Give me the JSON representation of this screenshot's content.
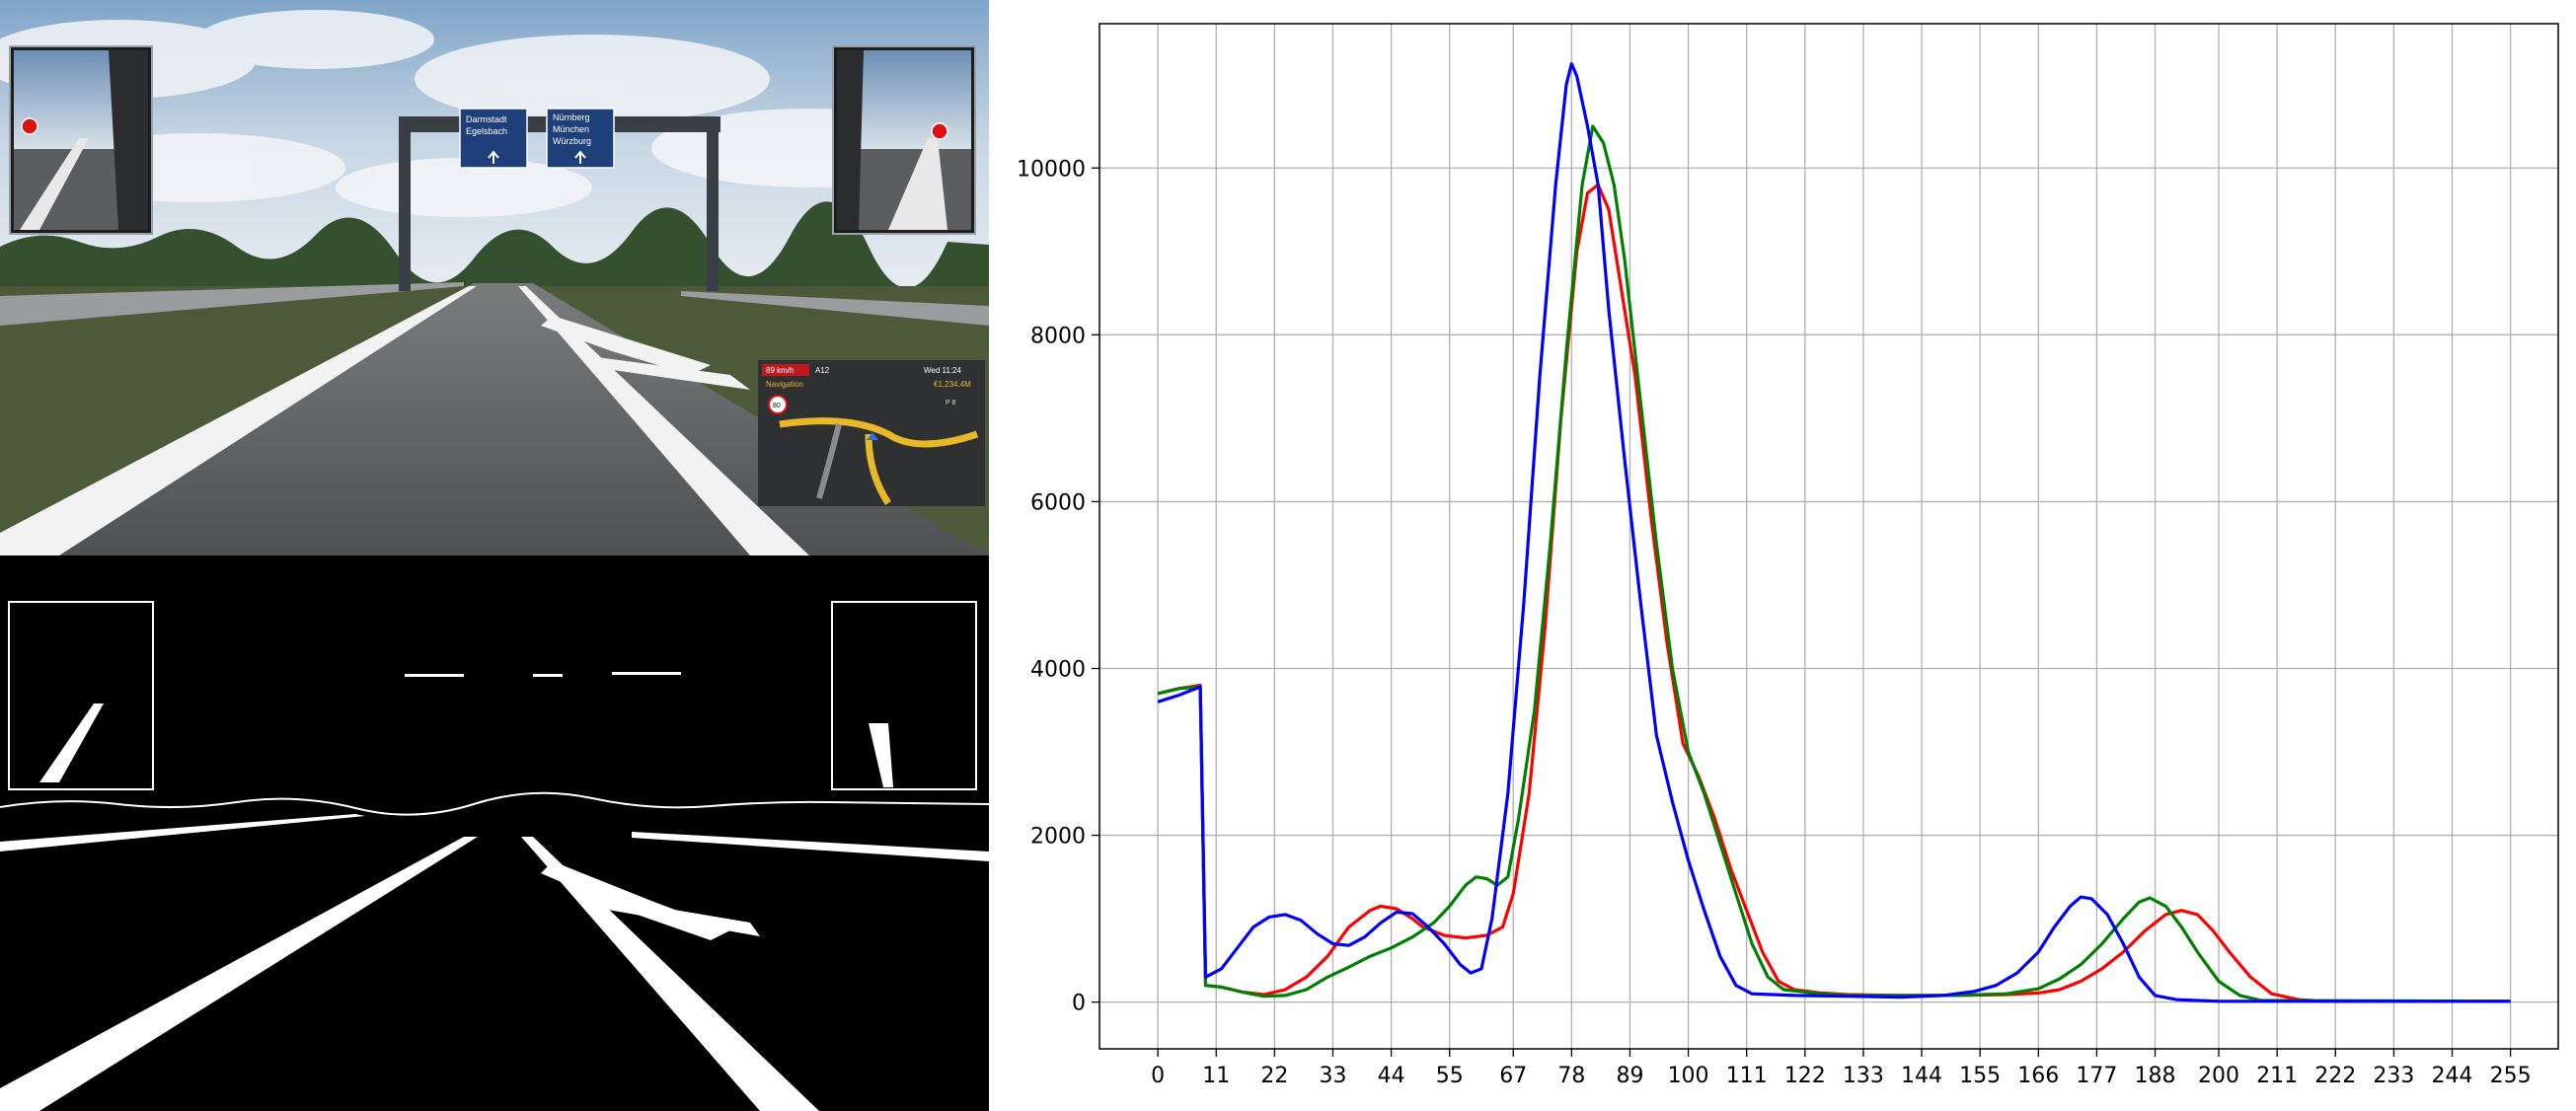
{
  "game_view": {
    "signs": {
      "left": [
        "Darmstadt",
        "Egelsbach"
      ],
      "right": [
        "Nürnberg",
        "München",
        "Würzburg"
      ]
    },
    "hud": {
      "speed": "89 km/h",
      "road": "A12",
      "time": "Wed 11:24",
      "nav_label": "Navigation",
      "money": "€1,234.4M",
      "speed_limit": "80",
      "zoom_label": "P 8"
    }
  },
  "colors": {
    "red": "#ff0000",
    "green": "#008000",
    "blue": "#0000ff",
    "grid": "#b0b0b0"
  },
  "chart_data": {
    "type": "line",
    "title": "",
    "xlabel": "",
    "ylabel": "",
    "xlim": [
      -11,
      264
    ],
    "ylim": [
      -560,
      11730
    ],
    "grid": true,
    "xticks": [
      0,
      11,
      22,
      33,
      44,
      55,
      67,
      78,
      89,
      100,
      111,
      122,
      133,
      144,
      155,
      166,
      177,
      188,
      200,
      211,
      222,
      233,
      244,
      255
    ],
    "xtick_labels": [
      "0",
      "11",
      "22",
      "33",
      "44",
      "55",
      "67",
      "78",
      "89",
      "100",
      "111",
      "122",
      "133",
      "144",
      "155",
      "166",
      "177",
      "188",
      "200",
      "211",
      "222",
      "233",
      "244",
      "255"
    ],
    "yticks": [
      0,
      2000,
      4000,
      6000,
      8000,
      10000
    ],
    "ytick_labels": [
      "0",
      "2000",
      "4000",
      "6000",
      "8000",
      "10000"
    ],
    "series": [
      {
        "color_key": "red",
        "points": [
          [
            0,
            3700
          ],
          [
            4,
            3760
          ],
          [
            8,
            3800
          ],
          [
            9,
            200
          ],
          [
            12,
            180
          ],
          [
            16,
            120
          ],
          [
            20,
            90
          ],
          [
            24,
            150
          ],
          [
            28,
            300
          ],
          [
            32,
            550
          ],
          [
            36,
            900
          ],
          [
            40,
            1100
          ],
          [
            42,
            1150
          ],
          [
            45,
            1120
          ],
          [
            48,
            1000
          ],
          [
            50,
            900
          ],
          [
            54,
            800
          ],
          [
            58,
            770
          ],
          [
            62,
            800
          ],
          [
            65,
            900
          ],
          [
            67,
            1300
          ],
          [
            70,
            2500
          ],
          [
            73,
            4500
          ],
          [
            76,
            7000
          ],
          [
            79,
            9000
          ],
          [
            81,
            9700
          ],
          [
            83,
            9800
          ],
          [
            85,
            9500
          ],
          [
            87,
            8700
          ],
          [
            90,
            7500
          ],
          [
            93,
            5800
          ],
          [
            96,
            4300
          ],
          [
            99,
            3100
          ],
          [
            102,
            2700
          ],
          [
            105,
            2200
          ],
          [
            108,
            1600
          ],
          [
            111,
            1100
          ],
          [
            114,
            600
          ],
          [
            117,
            250
          ],
          [
            120,
            150
          ],
          [
            125,
            110
          ],
          [
            130,
            90
          ],
          [
            140,
            80
          ],
          [
            150,
            80
          ],
          [
            160,
            90
          ],
          [
            166,
            110
          ],
          [
            170,
            150
          ],
          [
            174,
            250
          ],
          [
            178,
            400
          ],
          [
            182,
            600
          ],
          [
            186,
            850
          ],
          [
            190,
            1050
          ],
          [
            193,
            1100
          ],
          [
            196,
            1050
          ],
          [
            199,
            850
          ],
          [
            202,
            600
          ],
          [
            206,
            300
          ],
          [
            210,
            100
          ],
          [
            215,
            30
          ],
          [
            220,
            10
          ],
          [
            255,
            10
          ]
        ]
      },
      {
        "color_key": "green",
        "points": [
          [
            0,
            3700
          ],
          [
            4,
            3760
          ],
          [
            8,
            3780
          ],
          [
            9,
            200
          ],
          [
            12,
            180
          ],
          [
            16,
            120
          ],
          [
            20,
            70
          ],
          [
            24,
            80
          ],
          [
            28,
            150
          ],
          [
            32,
            300
          ],
          [
            36,
            420
          ],
          [
            40,
            550
          ],
          [
            44,
            650
          ],
          [
            48,
            780
          ],
          [
            52,
            950
          ],
          [
            55,
            1150
          ],
          [
            58,
            1400
          ],
          [
            60,
            1500
          ],
          [
            62,
            1480
          ],
          [
            64,
            1400
          ],
          [
            66,
            1500
          ],
          [
            68,
            2200
          ],
          [
            71,
            3500
          ],
          [
            74,
            5500
          ],
          [
            77,
            7800
          ],
          [
            80,
            9800
          ],
          [
            82,
            10500
          ],
          [
            84,
            10300
          ],
          [
            86,
            9800
          ],
          [
            88,
            8900
          ],
          [
            91,
            7200
          ],
          [
            94,
            5500
          ],
          [
            97,
            4000
          ],
          [
            100,
            3000
          ],
          [
            103,
            2500
          ],
          [
            106,
            1900
          ],
          [
            109,
            1300
          ],
          [
            112,
            700
          ],
          [
            115,
            300
          ],
          [
            118,
            150
          ],
          [
            125,
            100
          ],
          [
            130,
            80
          ],
          [
            140,
            80
          ],
          [
            150,
            80
          ],
          [
            160,
            100
          ],
          [
            166,
            160
          ],
          [
            170,
            280
          ],
          [
            174,
            450
          ],
          [
            178,
            700
          ],
          [
            182,
            1000
          ],
          [
            185,
            1200
          ],
          [
            187,
            1250
          ],
          [
            190,
            1150
          ],
          [
            193,
            900
          ],
          [
            196,
            600
          ],
          [
            200,
            250
          ],
          [
            204,
            80
          ],
          [
            208,
            20
          ],
          [
            255,
            10
          ]
        ]
      },
      {
        "color_key": "blue",
        "points": [
          [
            0,
            3600
          ],
          [
            4,
            3680
          ],
          [
            8,
            3780
          ],
          [
            9,
            300
          ],
          [
            12,
            400
          ],
          [
            15,
            650
          ],
          [
            18,
            900
          ],
          [
            21,
            1020
          ],
          [
            24,
            1050
          ],
          [
            27,
            980
          ],
          [
            30,
            820
          ],
          [
            33,
            700
          ],
          [
            36,
            680
          ],
          [
            39,
            780
          ],
          [
            42,
            950
          ],
          [
            45,
            1080
          ],
          [
            48,
            1060
          ],
          [
            51,
            900
          ],
          [
            54,
            700
          ],
          [
            57,
            450
          ],
          [
            59,
            350
          ],
          [
            61,
            400
          ],
          [
            63,
            1000
          ],
          [
            66,
            2500
          ],
          [
            69,
            4800
          ],
          [
            72,
            7500
          ],
          [
            75,
            9800
          ],
          [
            77,
            11000
          ],
          [
            78,
            11250
          ],
          [
            79,
            11100
          ],
          [
            81,
            10500
          ],
          [
            83,
            9800
          ],
          [
            85,
            8300
          ],
          [
            88,
            6500
          ],
          [
            91,
            4800
          ],
          [
            94,
            3200
          ],
          [
            97,
            2400
          ],
          [
            100,
            1700
          ],
          [
            103,
            1100
          ],
          [
            106,
            550
          ],
          [
            109,
            200
          ],
          [
            112,
            100
          ],
          [
            120,
            80
          ],
          [
            130,
            70
          ],
          [
            140,
            60
          ],
          [
            148,
            80
          ],
          [
            154,
            130
          ],
          [
            158,
            200
          ],
          [
            162,
            350
          ],
          [
            166,
            600
          ],
          [
            169,
            900
          ],
          [
            172,
            1150
          ],
          [
            174,
            1260
          ],
          [
            176,
            1240
          ],
          [
            179,
            1050
          ],
          [
            182,
            700
          ],
          [
            185,
            300
          ],
          [
            188,
            80
          ],
          [
            192,
            30
          ],
          [
            200,
            10
          ],
          [
            255,
            10
          ]
        ]
      }
    ]
  }
}
